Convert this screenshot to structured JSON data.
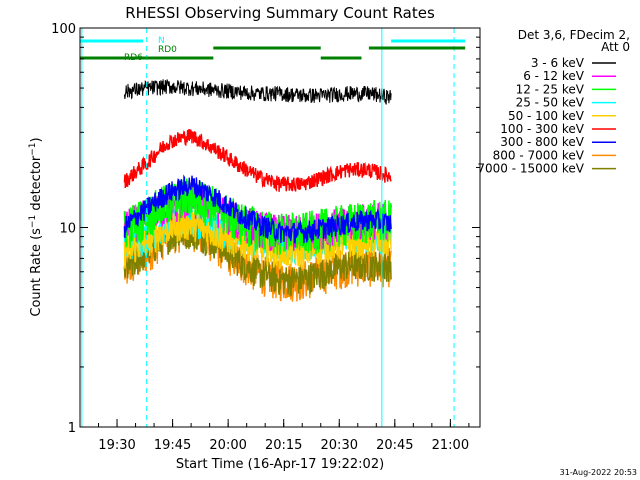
{
  "chart_data": {
    "type": "line",
    "title": "RHESSI Observing Summary Count Rates",
    "xlabel": "Start Time (16-Apr-17 19:22:02)",
    "ylabel": "Count Rate (s⁻¹ detector⁻¹)",
    "ylabel_base": "Count Rate (s",
    "ylabel_sup": "−1",
    "ylabel_mid": " detector",
    "ylabel_sup2": "−1",
    "ylabel_end": ")",
    "y_scale": "log",
    "ylim": [
      1,
      100
    ],
    "xlim_minutes": [
      1160,
      1268
    ],
    "x_ticks": [
      {
        "label": "19:30",
        "min": 1170
      },
      {
        "label": "19:45",
        "min": 1185
      },
      {
        "label": "20:00",
        "min": 1200
      },
      {
        "label": "20:15",
        "min": 1215
      },
      {
        "label": "20:30",
        "min": 1230
      },
      {
        "label": "20:45",
        "min": 1245
      },
      {
        "label": "21:00",
        "min": 1260
      }
    ],
    "y_ticks": [
      {
        "label": "1",
        "value": 1
      },
      {
        "label": "10",
        "value": 10
      },
      {
        "label": "100",
        "value": 100
      }
    ],
    "legend_header": [
      "Det 3,6, FDecim 2,",
      "Att 0"
    ],
    "legend_position": "right",
    "series": [
      {
        "name": "3 - 6 keV",
        "color": "#000000",
        "x": [
          1172,
          1178,
          1184,
          1190,
          1196,
          1202,
          1208,
          1214,
          1220,
          1226,
          1232,
          1238,
          1244
        ],
        "values": [
          48,
          50,
          51,
          50,
          49,
          48,
          47,
          47,
          46,
          46,
          47,
          47,
          45
        ],
        "noise": 0.05
      },
      {
        "name": "6 - 12 keV",
        "color": "#ff00ff",
        "x": [
          1172,
          1178,
          1184,
          1190,
          1196,
          1202,
          1208,
          1214,
          1220,
          1226,
          1232,
          1238,
          1244
        ],
        "values": [
          10,
          11.5,
          13,
          14,
          13,
          11,
          10,
          9.5,
          9.5,
          10,
          10.5,
          11,
          11
        ],
        "noise": 0.12
      },
      {
        "name": "12 - 25 keV",
        "color": "#00ff00",
        "x": [
          1172,
          1178,
          1184,
          1190,
          1196,
          1202,
          1208,
          1214,
          1220,
          1226,
          1232,
          1238,
          1244
        ],
        "values": [
          10,
          11.5,
          13.5,
          14.5,
          13,
          11,
          10,
          9.5,
          9.5,
          10,
          10.5,
          11,
          11
        ],
        "noise": 0.14
      },
      {
        "name": "25 - 50 keV",
        "color": "#00ffff",
        "x": [
          1172,
          1178,
          1184,
          1190,
          1196,
          1202,
          1208,
          1214,
          1220,
          1226,
          1232,
          1238,
          1244
        ],
        "values": [
          8,
          9,
          10.5,
          11,
          10,
          9,
          8.5,
          8,
          8,
          8.5,
          9,
          9,
          9
        ],
        "noise": 0.1
      },
      {
        "name": "50 - 100 keV",
        "color": "#ffd000",
        "x": [
          1172,
          1178,
          1184,
          1190,
          1196,
          1202,
          1208,
          1214,
          1220,
          1226,
          1232,
          1238,
          1244
        ],
        "values": [
          7.5,
          8.5,
          10,
          10.5,
          9.5,
          8.5,
          8,
          7.5,
          7.5,
          8,
          8.5,
          8.5,
          8.5
        ],
        "noise": 0.1
      },
      {
        "name": "100 - 300 keV",
        "color": "#ff0000",
        "x": [
          1172,
          1178,
          1184,
          1190,
          1196,
          1202,
          1208,
          1214,
          1220,
          1226,
          1232,
          1238,
          1244
        ],
        "values": [
          17,
          21,
          27,
          29,
          25,
          21,
          18,
          16.5,
          16.5,
          18,
          19.5,
          19.5,
          18
        ],
        "noise": 0.05
      },
      {
        "name": "300 - 800 keV",
        "color": "#0000ff",
        "x": [
          1172,
          1178,
          1184,
          1190,
          1196,
          1202,
          1208,
          1214,
          1220,
          1226,
          1232,
          1238,
          1244
        ],
        "values": [
          10,
          12.5,
          15,
          16.5,
          14.5,
          12,
          10.5,
          9.5,
          9.5,
          10,
          10.5,
          11,
          10.5
        ],
        "noise": 0.07
      },
      {
        "name": "800 - 7000 keV",
        "color": "#ff8c00",
        "x": [
          1172,
          1178,
          1184,
          1190,
          1196,
          1202,
          1208,
          1214,
          1220,
          1226,
          1232,
          1238,
          1244
        ],
        "values": [
          6,
          7.5,
          9.5,
          10,
          8.5,
          7,
          6,
          5.5,
          5.5,
          6,
          6.5,
          6.5,
          6.5
        ],
        "noise": 0.13
      },
      {
        "name": "7000 - 15000 keV",
        "color": "#808000",
        "x": [
          1172,
          1178,
          1184,
          1190,
          1196,
          1202,
          1208,
          1214,
          1220,
          1226,
          1232,
          1238,
          1244
        ],
        "values": [
          6,
          7.5,
          9,
          9.5,
          8.5,
          7,
          6,
          5.5,
          5.5,
          6,
          6.5,
          6.5,
          6.5
        ],
        "noise": 0.1
      }
    ],
    "annotations": {
      "flags": [
        {
          "label": "N",
          "color": "#00ffff",
          "segments": [
            [
              1160,
              1177
            ],
            [
              1244,
              1264
            ]
          ]
        },
        {
          "label": "RD0",
          "color": "#008000",
          "segments": [
            [
              1196,
              1225
            ],
            [
              1238,
              1264
            ]
          ]
        },
        {
          "label": "RD6",
          "color": "#008000",
          "segments": [
            [
              1160,
              1178
            ],
            [
              1178,
              1196
            ],
            [
              1225,
              1236
            ]
          ]
        }
      ],
      "vertical_lines": [
        {
          "min": 1160.5,
          "style": "solid",
          "color": "#00ffff"
        },
        {
          "min": 1178,
          "style": "dashed",
          "color": "#00ffff"
        },
        {
          "min": 1241.5,
          "style": "solid",
          "color": "#00ffff"
        },
        {
          "min": 1261,
          "style": "dashed",
          "color": "#00ffff"
        }
      ]
    },
    "grid": false
  },
  "footer_date": "31-Aug-2022 20:53"
}
